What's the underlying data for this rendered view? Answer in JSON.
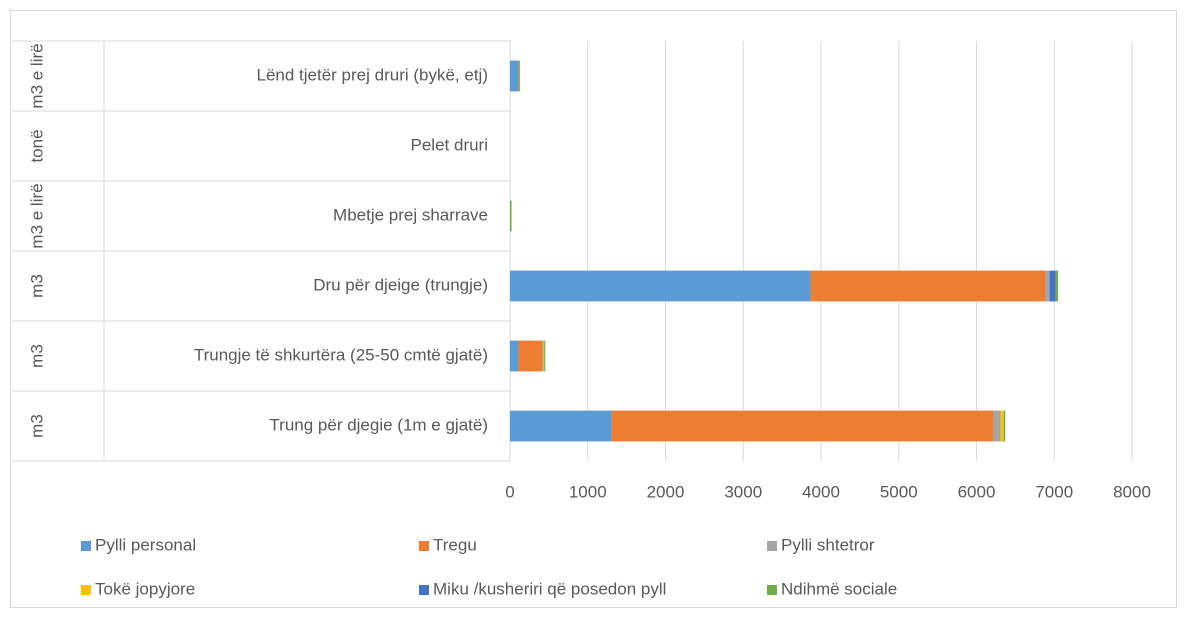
{
  "chart_data": {
    "type": "stacked-bar-horizontal",
    "category_groups": [
      "m3 e lirë",
      "tonë",
      "m3 e lirë",
      "m3",
      "m3",
      "m3"
    ],
    "categories": [
      "Lënd tjetër prej druri (bykë, etj)",
      "Pelet druri",
      "Mbetje prej sharrave",
      "Dru për djeige (trungje)",
      "Trungje të shkurtëra (25-50 cmtë gjatë)",
      "Trung për djegie (1m e gjatë)"
    ],
    "series": [
      {
        "name": "Pylli personal",
        "color": "#5b9bd5",
        "values": [
          110,
          0,
          0,
          3870,
          110,
          1310
        ]
      },
      {
        "name": "Tregu",
        "color": "#ed7d31",
        "values": [
          10,
          0,
          0,
          3020,
          310,
          4910
        ]
      },
      {
        "name": "Pylli shtetror",
        "color": "#a5a5a5",
        "values": [
          0,
          0,
          0,
          50,
          10,
          90
        ]
      },
      {
        "name": "Tokë jopyjore",
        "color": "#ffc000",
        "values": [
          0,
          0,
          0,
          0,
          10,
          40
        ]
      },
      {
        "name": "Miku /kusheriri që posedon pyll",
        "color": "#4472c4",
        "values": [
          0,
          0,
          0,
          80,
          0,
          0
        ]
      },
      {
        "name": "Ndihmë sociale",
        "color": "#70ad47",
        "values": [
          10,
          0,
          20,
          30,
          15,
          20
        ]
      }
    ],
    "xlim": [
      0,
      8000
    ],
    "xticks": [
      0,
      1000,
      2000,
      3000,
      4000,
      5000,
      6000,
      7000,
      8000
    ],
    "grid": true
  }
}
